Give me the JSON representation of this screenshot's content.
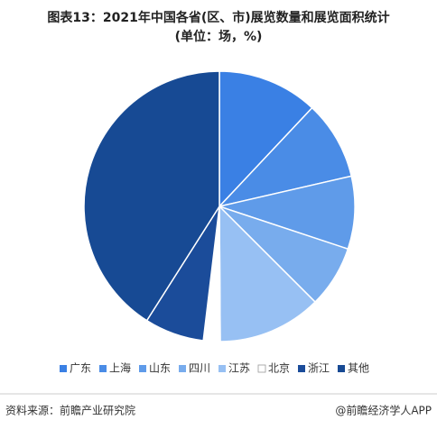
{
  "chart_data": {
    "type": "pie",
    "title": "图表13：2021年中国各省(区、市)展览数量和展览面积统计",
    "subtitle": "(单位：场，%)",
    "categories": [
      "广东",
      "上海",
      "山东",
      "四川",
      "江苏",
      "北京",
      "浙江",
      "其他"
    ],
    "values": [
      12,
      9.4,
      8.7,
      7.4,
      12.4,
      2,
      7.1,
      41
    ],
    "colors": [
      "#3a80e4",
      "#4a8ce6",
      "#5f9be9",
      "#78aced",
      "#97c0f3",
      "#ffffff",
      "#1b4c9a",
      "#174a94"
    ],
    "legend": "bottom",
    "source": "资料来源：前瞻产业研究院",
    "brand": "@前瞻经济学人APP"
  }
}
